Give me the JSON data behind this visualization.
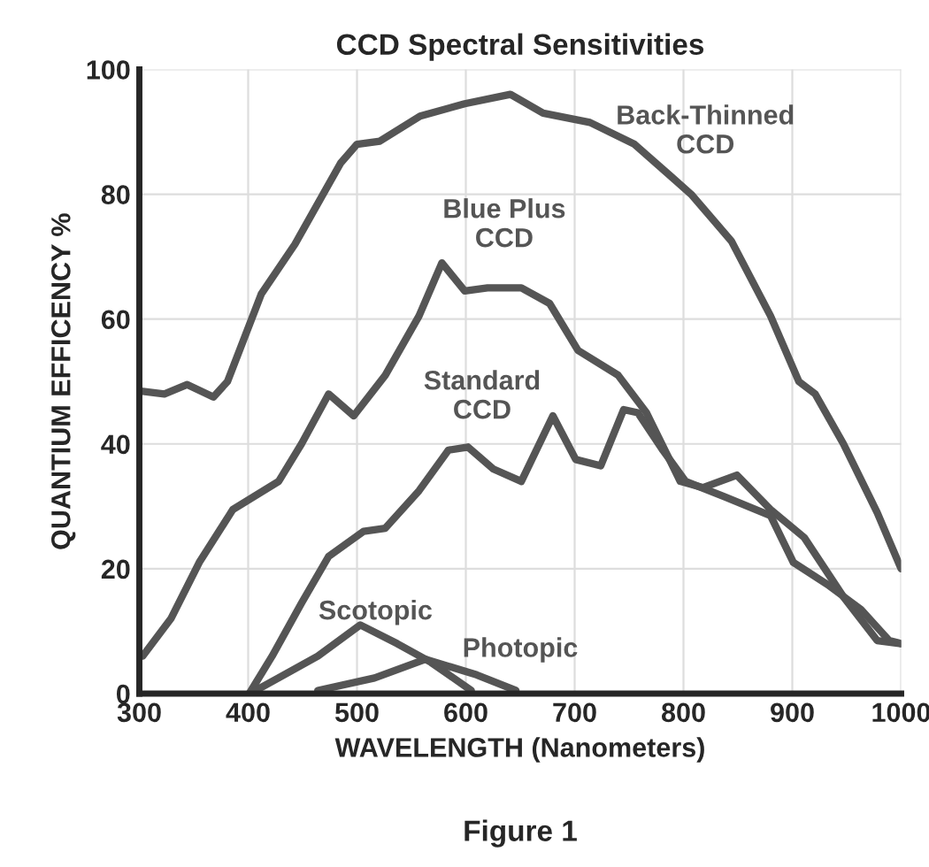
{
  "chart_data": {
    "type": "line",
    "title": "CCD Spectral Sensitivities",
    "xlabel": "WAVELENGTH (Nanometers)",
    "ylabel": "QUANTIUM EFFICENCY %",
    "annotations": [
      "Figure 1"
    ],
    "xlim": [
      300,
      1000
    ],
    "ylim": [
      0,
      100
    ],
    "xticks": [
      300,
      400,
      500,
      600,
      700,
      800,
      900,
      1000
    ],
    "yticks": [
      0,
      20,
      40,
      60,
      80,
      100
    ],
    "grid": true,
    "line_style": "solid",
    "series": [
      {
        "name": "Back-Thinned CCD",
        "color": "#555555",
        "x": [
          300,
          323,
          344,
          368,
          381,
          412,
          443,
          485,
          500,
          521,
          558,
          599,
          641,
          671,
          714,
          755,
          807,
          844,
          880,
          906,
          921,
          947,
          978,
          1000
        ],
        "values": [
          48.5,
          48,
          49.5,
          47.5,
          50,
          64,
          72,
          85,
          88,
          88.5,
          92.5,
          94.5,
          96,
          93,
          91.5,
          88,
          80,
          72.5,
          60.5,
          50,
          48,
          40,
          29,
          20
        ]
      },
      {
        "name": "Blue Plus CCD",
        "color": "#555555",
        "x": [
          303,
          329,
          355,
          386,
          428,
          449,
          474,
          497,
          526,
          557,
          578,
          599,
          620,
          651,
          677,
          703,
          740,
          766,
          797,
          818,
          849,
          880,
          911,
          947,
          978,
          1000
        ],
        "values": [
          6,
          12,
          21,
          29.5,
          34,
          40,
          48,
          44.5,
          51,
          60.5,
          69,
          64.5,
          65,
          65,
          62.5,
          55,
          51,
          45,
          34,
          33,
          35,
          29.5,
          25,
          15.5,
          8.5,
          8
        ]
      },
      {
        "name": "Standard CCD",
        "color": "#555555",
        "x": [
          401,
          422,
          449,
          474,
          506,
          526,
          557,
          584,
          602,
          625,
          651,
          680,
          701,
          724,
          745,
          758,
          781,
          802,
          838,
          880,
          901,
          932,
          963,
          989,
          1000
        ],
        "values": [
          0,
          6,
          14.5,
          22,
          26,
          26.5,
          32.5,
          39,
          39.5,
          36,
          34,
          44.5,
          37.5,
          36.5,
          45.5,
          45,
          39,
          34,
          31.5,
          28.5,
          21,
          17.5,
          13.5,
          8.5,
          8
        ]
      },
      {
        "name": "Scotopic",
        "color": "#555555",
        "x": [
          407,
          464,
          503,
          537,
          568,
          605
        ],
        "values": [
          0.5,
          6,
          11,
          8,
          5,
          0.5
        ]
      },
      {
        "name": "Photopic",
        "color": "#555555",
        "x": [
          464,
          516,
          563,
          610,
          646
        ],
        "values": [
          0.5,
          2.5,
          5.5,
          3,
          0.5
        ]
      }
    ]
  }
}
